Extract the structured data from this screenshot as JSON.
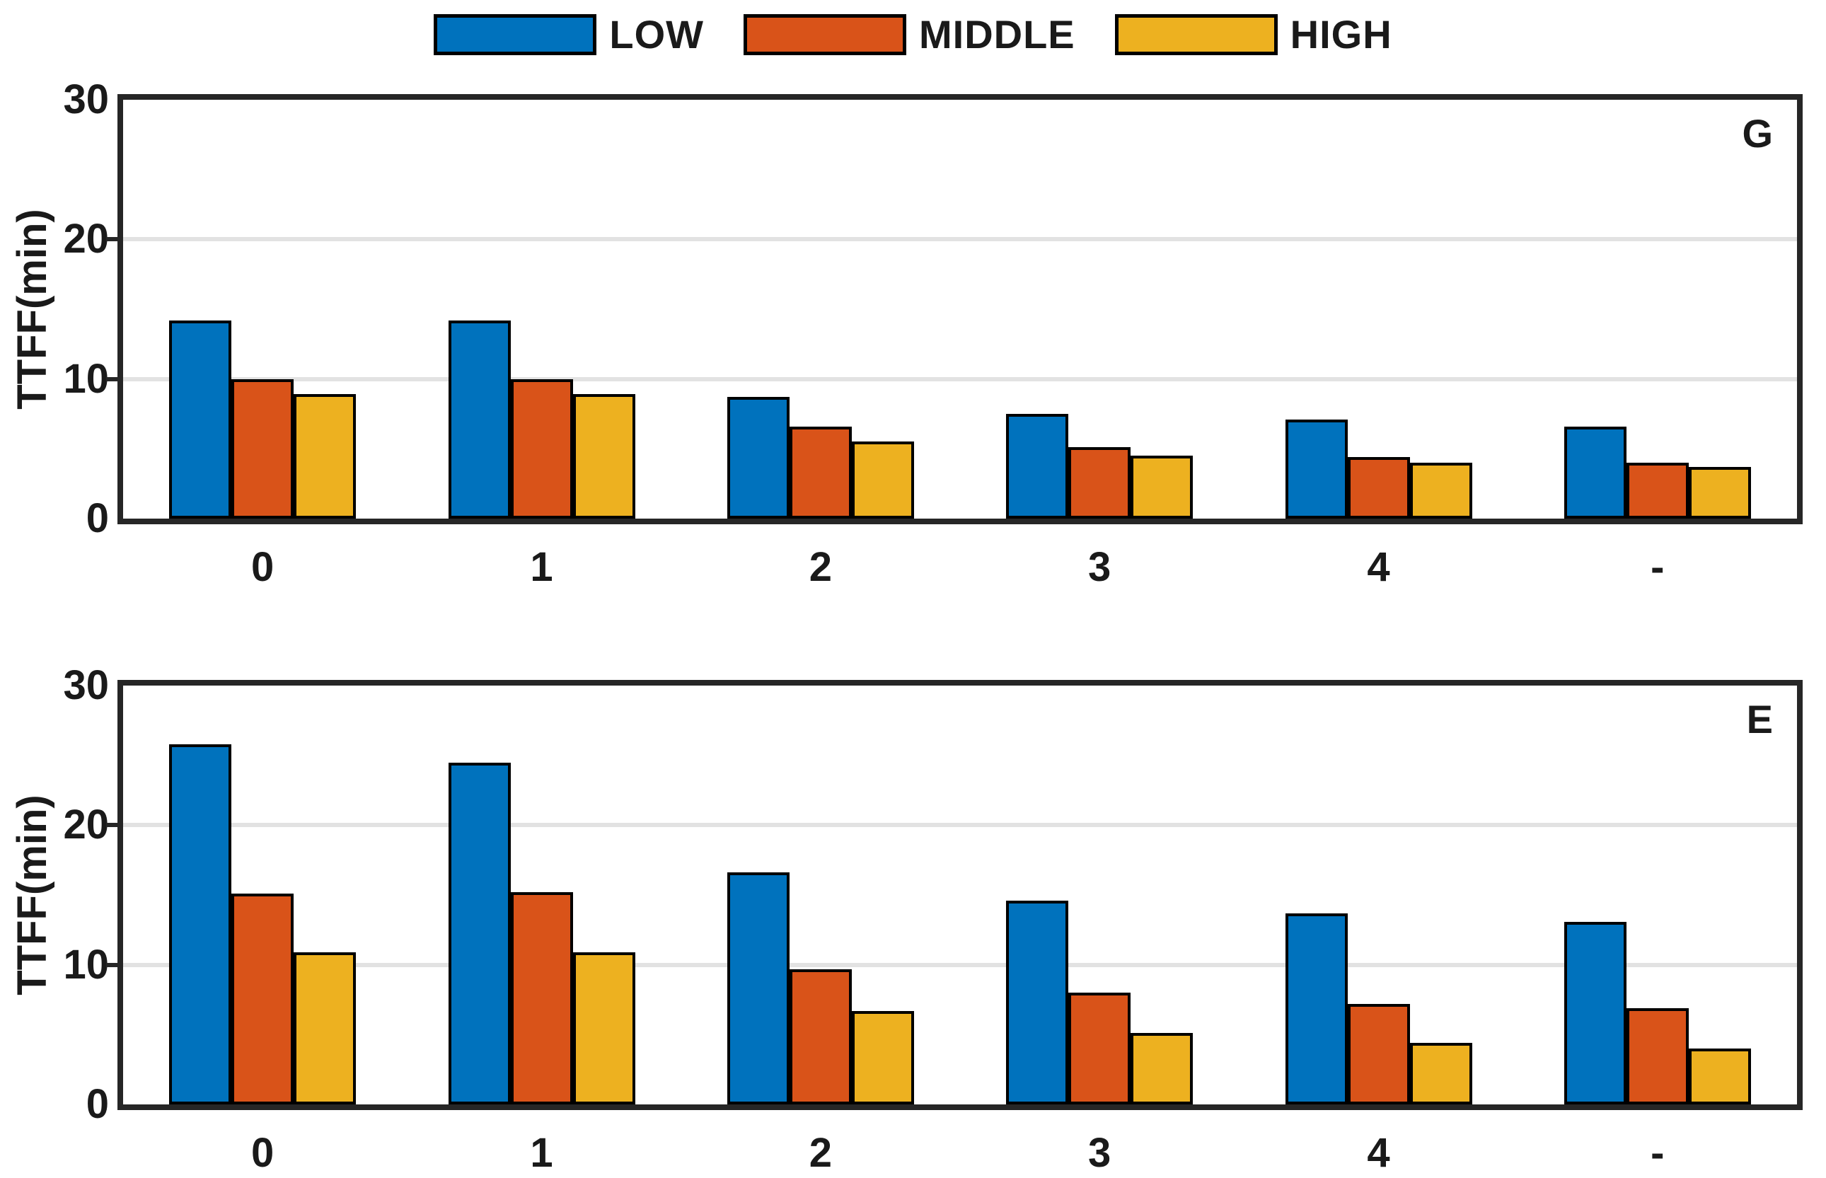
{
  "legend": {
    "items": [
      {
        "label": "LOW",
        "color": "#0072BD"
      },
      {
        "label": "MIDDLE",
        "color": "#D95319"
      },
      {
        "label": "HIGH",
        "color": "#EDB120"
      }
    ]
  },
  "colors": {
    "axis": "#262626",
    "grid": "#e2e2e2",
    "bar_edge": "#000000"
  },
  "chart_data": [
    {
      "type": "bar",
      "panel_label": "G",
      "ylabel": "TTFF(min)",
      "ylim": [
        0,
        30
      ],
      "yticks": [
        "0",
        "10",
        "20",
        "30"
      ],
      "gridlines": [
        10,
        20
      ],
      "grid": "on",
      "legend_position": "top-center-horizontal",
      "categories": [
        "0",
        "1",
        "2",
        "3",
        "4",
        "-"
      ],
      "series": [
        {
          "name": "LOW",
          "color": "#0072BD",
          "values": [
            14.2,
            14.2,
            8.7,
            7.5,
            7.1,
            6.6
          ]
        },
        {
          "name": "MIDDLE",
          "color": "#D95319",
          "values": [
            10.0,
            10.0,
            6.6,
            5.1,
            4.4,
            4.0
          ]
        },
        {
          "name": "HIGH",
          "color": "#EDB120",
          "values": [
            8.9,
            8.9,
            5.5,
            4.5,
            4.0,
            3.7
          ]
        }
      ]
    },
    {
      "type": "bar",
      "panel_label": "E",
      "ylabel": "TTFF(min)",
      "ylim": [
        0,
        30
      ],
      "yticks": [
        "0",
        "10",
        "20",
        "30"
      ],
      "gridlines": [
        10,
        20
      ],
      "grid": "on",
      "legend_position": "top-center-horizontal",
      "categories": [
        "0",
        "1",
        "2",
        "3",
        "4",
        "-"
      ],
      "series": [
        {
          "name": "LOW",
          "color": "#0072BD",
          "values": [
            25.8,
            24.5,
            16.6,
            14.6,
            13.7,
            13.1
          ]
        },
        {
          "name": "MIDDLE",
          "color": "#D95319",
          "values": [
            15.1,
            15.2,
            9.7,
            8.0,
            7.2,
            6.9
          ]
        },
        {
          "name": "HIGH",
          "color": "#EDB120",
          "values": [
            10.9,
            10.9,
            6.7,
            5.1,
            4.4,
            4.0
          ]
        }
      ]
    }
  ]
}
